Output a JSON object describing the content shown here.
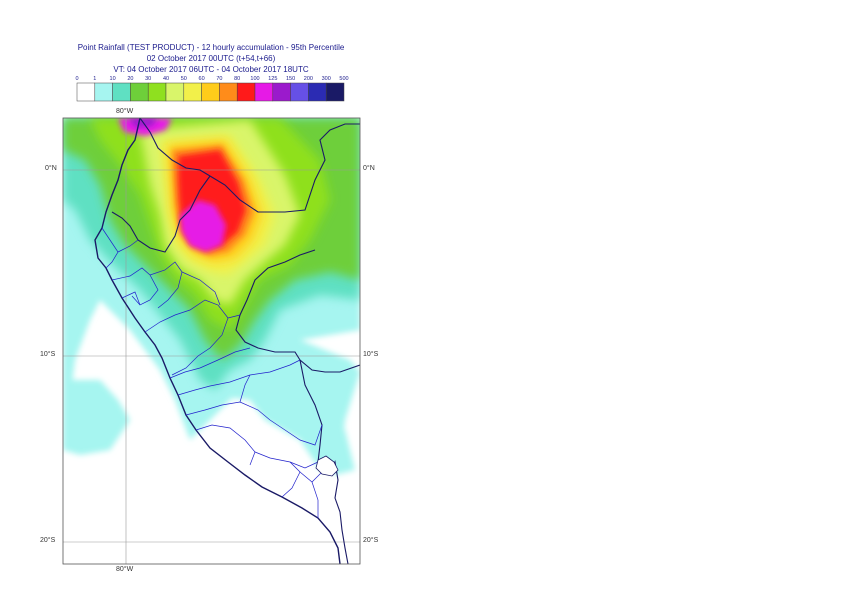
{
  "title": {
    "line1": "Point Rainfall (TEST PRODUCT) - 12 hourly accumulation - 95th Percentile",
    "line2": "02 October 2017 00UTC (t+54,t+66)",
    "line3": "VT: 04 October 2017 06UTC - 04 October 2017 18UTC"
  },
  "legend": {
    "thresholds": [
      "0",
      "1",
      "10",
      "20",
      "30",
      "40",
      "50",
      "60",
      "70",
      "80",
      "100",
      "125",
      "150",
      "200",
      "300",
      "500"
    ],
    "colors": [
      "#ffffff",
      "#a6f5f0",
      "#5fe0c2",
      "#6ecf3a",
      "#8fe01f",
      "#d9f56a",
      "#f2f04a",
      "#ffcc1a",
      "#ff8c1a",
      "#ff1a1a",
      "#e61ae6",
      "#9b1acc",
      "#6650e6",
      "#2b2bb3",
      "#1a1a66"
    ]
  },
  "map": {
    "lon_labels": {
      "top": "80°W",
      "bottom": "80°W"
    },
    "lat_labels": [
      "0°N",
      "10°S",
      "20°S"
    ]
  }
}
